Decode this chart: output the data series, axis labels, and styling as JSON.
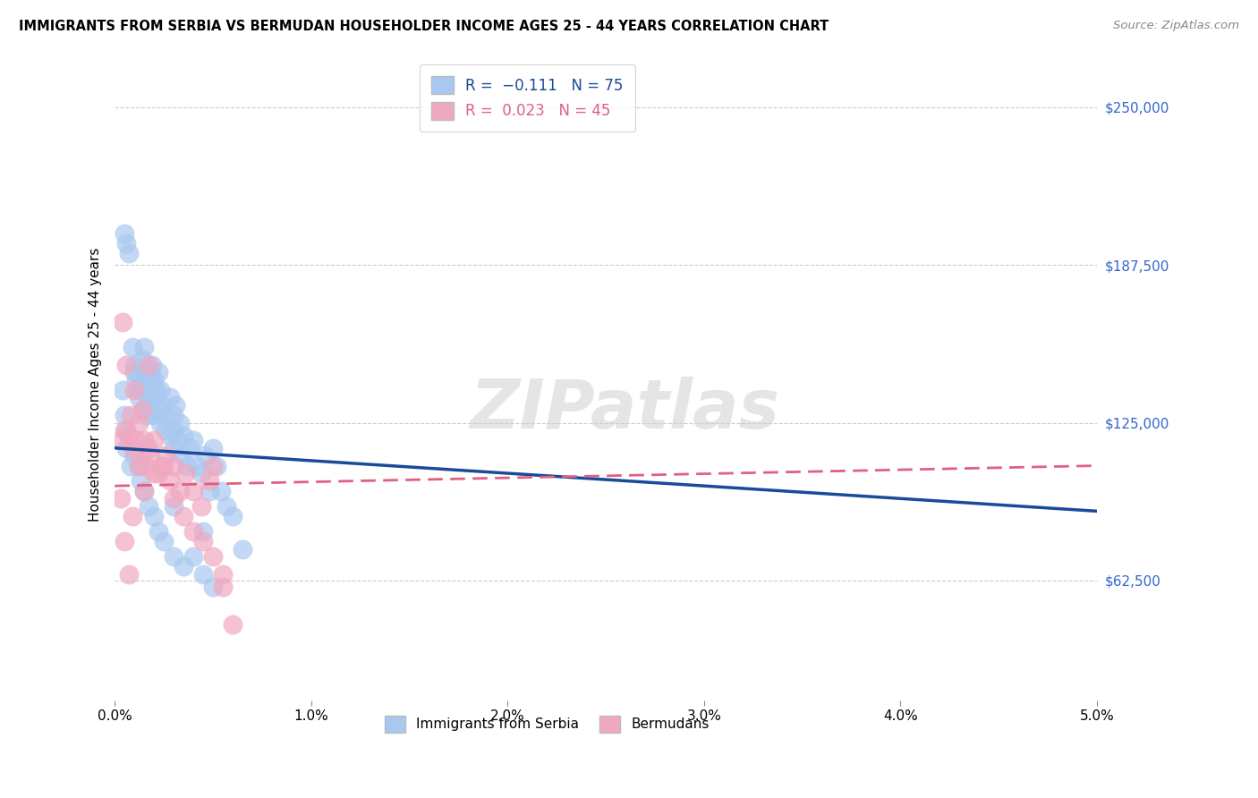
{
  "title": "IMMIGRANTS FROM SERBIA VS BERMUDAN HOUSEHOLDER INCOME AGES 25 - 44 YEARS CORRELATION CHART",
  "source": "Source: ZipAtlas.com",
  "ylabel": "Householder Income Ages 25 - 44 years",
  "yticks": [
    62500,
    125000,
    187500,
    250000
  ],
  "ytick_labels": [
    "$62,500",
    "$125,000",
    "$187,500",
    "$250,000"
  ],
  "xmin": 0.0,
  "xmax": 0.05,
  "ymin": 15000,
  "ymax": 265000,
  "color_serbia": "#a8c8f0",
  "color_bermuda": "#f0a8c0",
  "line_color_serbia": "#1a4a9a",
  "line_color_bermuda": "#e06080",
  "watermark_text": "ZIPatlas",
  "serbia_x": [
    0.0005,
    0.0006,
    0.0007,
    0.0009,
    0.001,
    0.001,
    0.0011,
    0.0012,
    0.0012,
    0.0013,
    0.0014,
    0.0014,
    0.0015,
    0.0015,
    0.0015,
    0.0016,
    0.0016,
    0.0017,
    0.0018,
    0.0018,
    0.0019,
    0.002,
    0.002,
    0.002,
    0.0021,
    0.0022,
    0.0022,
    0.0023,
    0.0023,
    0.0024,
    0.0025,
    0.0026,
    0.0028,
    0.0028,
    0.003,
    0.003,
    0.003,
    0.0031,
    0.0032,
    0.0033,
    0.0034,
    0.0035,
    0.0037,
    0.0038,
    0.004,
    0.0042,
    0.0044,
    0.0046,
    0.0048,
    0.005,
    0.0052,
    0.0054,
    0.0057,
    0.006,
    0.0065,
    0.0004,
    0.0005,
    0.0006,
    0.0006,
    0.0008,
    0.001,
    0.0012,
    0.0013,
    0.0015,
    0.0017,
    0.002,
    0.0022,
    0.0025,
    0.003,
    0.0035,
    0.004,
    0.0045,
    0.005,
    0.0045,
    0.003
  ],
  "serbia_y": [
    200000,
    196000,
    192000,
    155000,
    148000,
    145000,
    142000,
    138000,
    135000,
    143000,
    150000,
    140000,
    155000,
    130000,
    145000,
    138000,
    128000,
    135000,
    145000,
    132000,
    148000,
    142000,
    135000,
    128000,
    138000,
    145000,
    130000,
    138000,
    125000,
    132000,
    128000,
    122000,
    135000,
    120000,
    128000,
    122000,
    115000,
    132000,
    118000,
    125000,
    112000,
    120000,
    108000,
    115000,
    118000,
    108000,
    105000,
    112000,
    98000,
    115000,
    108000,
    98000,
    92000,
    88000,
    75000,
    138000,
    128000,
    122000,
    115000,
    108000,
    112000,
    108000,
    102000,
    98000,
    92000,
    88000,
    82000,
    78000,
    72000,
    68000,
    72000,
    65000,
    60000,
    82000,
    92000
  ],
  "bermuda_x": [
    0.0003,
    0.0004,
    0.0005,
    0.0006,
    0.0007,
    0.0008,
    0.0009,
    0.001,
    0.0011,
    0.0012,
    0.0013,
    0.0014,
    0.0015,
    0.0016,
    0.0017,
    0.0018,
    0.002,
    0.0022,
    0.0024,
    0.0026,
    0.0028,
    0.003,
    0.0033,
    0.0036,
    0.004,
    0.0044,
    0.0048,
    0.005,
    0.0055,
    0.006,
    0.0003,
    0.0005,
    0.0007,
    0.0009,
    0.0012,
    0.0015,
    0.0017,
    0.002,
    0.0025,
    0.003,
    0.0035,
    0.004,
    0.0045,
    0.005,
    0.0055
  ],
  "bermuda_y": [
    118000,
    165000,
    122000,
    148000,
    120000,
    128000,
    115000,
    138000,
    118000,
    125000,
    112000,
    130000,
    118000,
    108000,
    148000,
    112000,
    118000,
    105000,
    108000,
    112000,
    102000,
    108000,
    98000,
    105000,
    98000,
    92000,
    102000,
    108000,
    60000,
    45000,
    95000,
    78000,
    65000,
    88000,
    108000,
    98000,
    115000,
    105000,
    108000,
    95000,
    88000,
    82000,
    78000,
    72000,
    65000
  ]
}
